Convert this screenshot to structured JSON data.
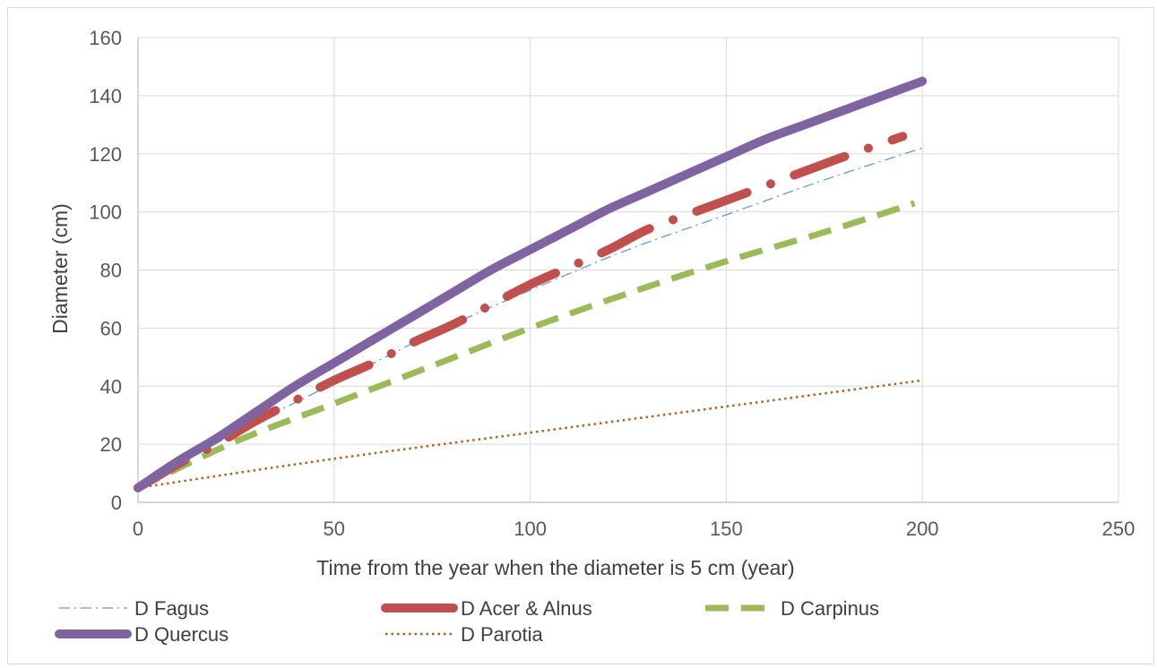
{
  "chart_data": {
    "type": "line",
    "title": "",
    "xlabel": "Time from the year when the diameter is 5 cm (year)",
    "ylabel": "Diameter (cm)",
    "xlim": [
      0,
      250
    ],
    "ylim": [
      0,
      160
    ],
    "xticks": [
      "0",
      "50",
      "100",
      "150",
      "200",
      "250"
    ],
    "yticks": [
      "0",
      "20",
      "40",
      "60",
      "80",
      "100",
      "120",
      "140",
      "160"
    ],
    "grid": true,
    "legend_position": "bottom",
    "series": [
      {
        "name": "D Fagus",
        "color": "#5b9bd5",
        "style": "dash-dot-thin",
        "x": [
          0,
          25,
          50,
          75,
          100,
          125,
          150,
          175,
          200
        ],
        "y": [
          5,
          24,
          41,
          58,
          73,
          87,
          99,
          111,
          122
        ]
      },
      {
        "name": "D Acer & Alnus",
        "color": "#c0504d",
        "style": "thick-long-dash-dot",
        "x": [
          0,
          10,
          20,
          30,
          40,
          50,
          60,
          70,
          80,
          90,
          100,
          110,
          120,
          130,
          140,
          150,
          160,
          170,
          180,
          195
        ],
        "y": [
          5,
          13,
          20,
          28,
          35,
          42,
          48,
          55,
          61,
          68,
          75,
          81,
          87,
          94,
          99,
          104,
          109,
          114,
          119,
          126
        ]
      },
      {
        "name": "D Carpinus",
        "color": "#9bbb59",
        "style": "long-dash",
        "x": [
          0,
          25,
          50,
          75,
          100,
          125,
          150,
          175,
          198
        ],
        "y": [
          5,
          21,
          34,
          47,
          60,
          72,
          83,
          93,
          103
        ]
      },
      {
        "name": "D Quercus",
        "color": "#8064a2",
        "style": "thick-solid",
        "x": [
          0,
          10,
          20,
          30,
          40,
          50,
          60,
          70,
          80,
          90,
          100,
          110,
          120,
          130,
          140,
          150,
          160,
          170,
          180,
          190,
          200
        ],
        "y": [
          5,
          14,
          22,
          31,
          40,
          48,
          56,
          64,
          72,
          80,
          87,
          94,
          101,
          107,
          113,
          119,
          125,
          130,
          135,
          140,
          145
        ]
      },
      {
        "name": "D Parotia",
        "color": "#b45f1e",
        "style": "dotted",
        "x": [
          0,
          50,
          100,
          150,
          200
        ],
        "y": [
          5,
          15,
          24,
          33,
          42
        ]
      }
    ]
  }
}
